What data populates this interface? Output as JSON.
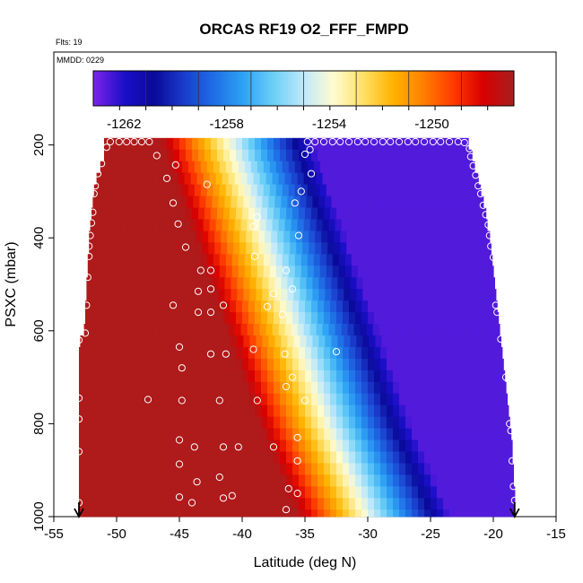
{
  "chart_data": {
    "type": "heatmap",
    "title": "ORCAS RF19 O2_FFF_FMPD",
    "flights_label": "Flts: 19",
    "date_label": "MMDD: 0229",
    "xlabel": "Latitude (deg N)",
    "ylabel": "PSXC (mbar)",
    "xlim": [
      -55,
      -15
    ],
    "ylim": [
      1000,
      0
    ],
    "x_ticks": [
      -55,
      -50,
      -45,
      -40,
      -35,
      -30,
      -25,
      -20,
      -15
    ],
    "y_ticks": [
      200,
      400,
      600,
      800,
      1000
    ],
    "colorbar": {
      "range": [
        -1263.2,
        -1246.8
      ],
      "tick_values": [
        -1262,
        -1258,
        -1254,
        -1250
      ],
      "tick_labels": [
        "-1262",
        "-1258",
        "-1254",
        "-1250"
      ],
      "colors": [
        "#7b22e8",
        "#1a0fc9",
        "#0a0a9a",
        "#1a3ccc",
        "#1f6ee6",
        "#2ea3f5",
        "#6ccff7",
        "#bfe9fb",
        "#fffbd0",
        "#ffe066",
        "#ffb300",
        "#ff8000",
        "#ff3b00",
        "#d90000",
        "#a81e1e"
      ],
      "bands": 16
    },
    "layers": [
      {
        "p_top": 185,
        "p_bot": 210,
        "lat_start": -51.0,
        "lat_end": -22.0
      },
      {
        "p_top": 210,
        "p_bot": 235,
        "lat_start": -51.0,
        "lat_end": -21.7
      },
      {
        "p_top": 235,
        "p_bot": 260,
        "lat_start": -51.3,
        "lat_end": -21.5
      },
      {
        "p_top": 260,
        "p_bot": 285,
        "lat_start": -51.6,
        "lat_end": -21.2
      },
      {
        "p_top": 285,
        "p_bot": 310,
        "lat_start": -51.8,
        "lat_end": -21.0
      },
      {
        "p_top": 310,
        "p_bot": 335,
        "lat_start": -51.9,
        "lat_end": -20.8
      },
      {
        "p_top": 335,
        "p_bot": 360,
        "lat_start": -52.0,
        "lat_end": -20.6
      },
      {
        "p_top": 360,
        "p_bot": 385,
        "lat_start": -52.1,
        "lat_end": -20.5
      },
      {
        "p_top": 385,
        "p_bot": 410,
        "lat_start": -52.2,
        "lat_end": -20.3
      },
      {
        "p_top": 410,
        "p_bot": 435,
        "lat_start": -52.2,
        "lat_end": -20.2
      },
      {
        "p_top": 435,
        "p_bot": 460,
        "lat_start": -52.3,
        "lat_end": -20.1
      },
      {
        "p_top": 460,
        "p_bot": 485,
        "lat_start": -52.3,
        "lat_end": -20.0
      },
      {
        "p_top": 485,
        "p_bot": 510,
        "lat_start": -52.4,
        "lat_end": -19.9
      },
      {
        "p_top": 510,
        "p_bot": 535,
        "lat_start": -52.4,
        "lat_end": -19.8
      },
      {
        "p_top": 535,
        "p_bot": 560,
        "lat_start": -52.5,
        "lat_end": -19.7
      },
      {
        "p_top": 560,
        "p_bot": 585,
        "lat_start": -52.5,
        "lat_end": -19.6
      },
      {
        "p_top": 585,
        "p_bot": 610,
        "lat_start": -52.6,
        "lat_end": -19.5
      },
      {
        "p_top": 610,
        "p_bot": 635,
        "lat_start": -52.9,
        "lat_end": -19.4
      },
      {
        "p_top": 635,
        "p_bot": 660,
        "lat_start": -53.0,
        "lat_end": -19.3
      },
      {
        "p_top": 660,
        "p_bot": 685,
        "lat_start": -53.0,
        "lat_end": -19.2
      },
      {
        "p_top": 685,
        "p_bot": 710,
        "lat_start": -53.0,
        "lat_end": -19.1
      },
      {
        "p_top": 710,
        "p_bot": 735,
        "lat_start": -53.0,
        "lat_end": -19.0
      },
      {
        "p_top": 735,
        "p_bot": 760,
        "lat_start": -53.0,
        "lat_end": -18.9
      },
      {
        "p_top": 760,
        "p_bot": 785,
        "lat_start": -53.0,
        "lat_end": -18.8
      },
      {
        "p_top": 785,
        "p_bot": 810,
        "lat_start": -53.0,
        "lat_end": -18.7
      },
      {
        "p_top": 810,
        "p_bot": 835,
        "lat_start": -53.0,
        "lat_end": -18.6
      },
      {
        "p_top": 835,
        "p_bot": 860,
        "lat_start": -53.0,
        "lat_end": -18.5
      },
      {
        "p_top": 860,
        "p_bot": 885,
        "lat_start": -53.0,
        "lat_end": -18.5
      },
      {
        "p_top": 885,
        "p_bot": 910,
        "lat_start": -53.0,
        "lat_end": -18.4
      },
      {
        "p_top": 910,
        "p_bot": 935,
        "lat_start": -53.0,
        "lat_end": -18.4
      },
      {
        "p_top": 935,
        "p_bot": 960,
        "lat_start": -53.0,
        "lat_end": -18.3
      },
      {
        "p_top": 960,
        "p_bot": 985,
        "lat_start": -53.0,
        "lat_end": -18.3
      },
      {
        "p_top": 985,
        "p_bot": 1000,
        "lat_start": -53.0,
        "lat_end": -18.3
      }
    ],
    "observations": [
      {
        "lat": -50.5,
        "p": 193
      },
      {
        "lat": -49.8,
        "p": 193
      },
      {
        "lat": -49.2,
        "p": 193
      },
      {
        "lat": -48.6,
        "p": 193
      },
      {
        "lat": -48.0,
        "p": 193
      },
      {
        "lat": -47.4,
        "p": 193
      },
      {
        "lat": -50.8,
        "p": 205
      },
      {
        "lat": -34.8,
        "p": 193
      },
      {
        "lat": -34.2,
        "p": 193
      },
      {
        "lat": -33.5,
        "p": 193
      },
      {
        "lat": -32.8,
        "p": 193
      },
      {
        "lat": -32.2,
        "p": 193
      },
      {
        "lat": -31.5,
        "p": 193
      },
      {
        "lat": -30.8,
        "p": 193
      },
      {
        "lat": -30.2,
        "p": 193
      },
      {
        "lat": -29.5,
        "p": 193
      },
      {
        "lat": -28.8,
        "p": 193
      },
      {
        "lat": -28.2,
        "p": 193
      },
      {
        "lat": -27.5,
        "p": 193
      },
      {
        "lat": -26.8,
        "p": 193
      },
      {
        "lat": -26.2,
        "p": 193
      },
      {
        "lat": -25.5,
        "p": 193
      },
      {
        "lat": -24.8,
        "p": 193
      },
      {
        "lat": -24.2,
        "p": 193
      },
      {
        "lat": -23.5,
        "p": 193
      },
      {
        "lat": -22.8,
        "p": 193
      },
      {
        "lat": -22.3,
        "p": 195
      },
      {
        "lat": -21.9,
        "p": 208
      },
      {
        "lat": -46.8,
        "p": 223
      },
      {
        "lat": -35.0,
        "p": 220
      },
      {
        "lat": -34.6,
        "p": 210
      },
      {
        "lat": -21.8,
        "p": 225
      },
      {
        "lat": -51.2,
        "p": 240
      },
      {
        "lat": -45.3,
        "p": 243
      },
      {
        "lat": -21.6,
        "p": 245
      },
      {
        "lat": -51.5,
        "p": 262
      },
      {
        "lat": -46.0,
        "p": 272
      },
      {
        "lat": -34.5,
        "p": 262
      },
      {
        "lat": -21.4,
        "p": 265
      },
      {
        "lat": -51.7,
        "p": 288
      },
      {
        "lat": -42.8,
        "p": 285
      },
      {
        "lat": -21.2,
        "p": 288
      },
      {
        "lat": -51.8,
        "p": 305
      },
      {
        "lat": -35.3,
        "p": 300
      },
      {
        "lat": -21.0,
        "p": 305
      },
      {
        "lat": -45.5,
        "p": 325
      },
      {
        "lat": -35.8,
        "p": 325
      },
      {
        "lat": -20.8,
        "p": 330
      },
      {
        "lat": -51.9,
        "p": 345
      },
      {
        "lat": -38.8,
        "p": 355
      },
      {
        "lat": -20.6,
        "p": 350
      },
      {
        "lat": -52.0,
        "p": 368
      },
      {
        "lat": -45.1,
        "p": 370
      },
      {
        "lat": -39.1,
        "p": 375
      },
      {
        "lat": -20.4,
        "p": 372
      },
      {
        "lat": -52.1,
        "p": 395
      },
      {
        "lat": -35.5,
        "p": 395
      },
      {
        "lat": -20.3,
        "p": 395
      },
      {
        "lat": -52.2,
        "p": 418
      },
      {
        "lat": -44.5,
        "p": 420
      },
      {
        "lat": -20.2,
        "p": 418
      },
      {
        "lat": -52.2,
        "p": 440
      },
      {
        "lat": -39.0,
        "p": 440
      },
      {
        "lat": -20.0,
        "p": 442
      },
      {
        "lat": -43.3,
        "p": 470
      },
      {
        "lat": -42.5,
        "p": 470
      },
      {
        "lat": -36.5,
        "p": 470
      },
      {
        "lat": -52.3,
        "p": 485
      },
      {
        "lat": -42.5,
        "p": 510
      },
      {
        "lat": -43.5,
        "p": 515
      },
      {
        "lat": -37.5,
        "p": 520
      },
      {
        "lat": -36.0,
        "p": 510
      },
      {
        "lat": -52.4,
        "p": 545
      },
      {
        "lat": -45.5,
        "p": 545
      },
      {
        "lat": -41.5,
        "p": 545
      },
      {
        "lat": -38.0,
        "p": 548
      },
      {
        "lat": -19.8,
        "p": 545
      },
      {
        "lat": -43.5,
        "p": 560
      },
      {
        "lat": -42.5,
        "p": 560
      },
      {
        "lat": -36.8,
        "p": 565
      },
      {
        "lat": -19.7,
        "p": 560
      },
      {
        "lat": -52.5,
        "p": 605
      },
      {
        "lat": -45.0,
        "p": 635
      },
      {
        "lat": -42.5,
        "p": 650
      },
      {
        "lat": -41.3,
        "p": 650
      },
      {
        "lat": -39.1,
        "p": 640
      },
      {
        "lat": -36.6,
        "p": 650
      },
      {
        "lat": -32.5,
        "p": 645
      },
      {
        "lat": -19.4,
        "p": 618
      },
      {
        "lat": -53.0,
        "p": 620
      },
      {
        "lat": -44.8,
        "p": 680
      },
      {
        "lat": -36.0,
        "p": 700
      },
      {
        "lat": -19.0,
        "p": 700
      },
      {
        "lat": -53.0,
        "p": 745
      },
      {
        "lat": -47.5,
        "p": 748
      },
      {
        "lat": -44.8,
        "p": 750
      },
      {
        "lat": -41.8,
        "p": 750
      },
      {
        "lat": -38.8,
        "p": 750
      },
      {
        "lat": -36.5,
        "p": 720
      },
      {
        "lat": -35.0,
        "p": 750
      },
      {
        "lat": -18.7,
        "p": 800
      },
      {
        "lat": -53.0,
        "p": 790
      },
      {
        "lat": -45.0,
        "p": 835
      },
      {
        "lat": -43.8,
        "p": 850
      },
      {
        "lat": -41.5,
        "p": 850
      },
      {
        "lat": -40.3,
        "p": 850
      },
      {
        "lat": -37.5,
        "p": 850
      },
      {
        "lat": -35.6,
        "p": 830
      },
      {
        "lat": -18.6,
        "p": 815
      },
      {
        "lat": -53.0,
        "p": 860
      },
      {
        "lat": -45.0,
        "p": 887
      },
      {
        "lat": -35.6,
        "p": 880
      },
      {
        "lat": -18.5,
        "p": 880
      },
      {
        "lat": -43.6,
        "p": 925
      },
      {
        "lat": -41.8,
        "p": 915
      },
      {
        "lat": -36.3,
        "p": 940
      },
      {
        "lat": -35.6,
        "p": 950
      },
      {
        "lat": -18.4,
        "p": 935
      },
      {
        "lat": -45.0,
        "p": 958
      },
      {
        "lat": -44.0,
        "p": 970
      },
      {
        "lat": -41.5,
        "p": 960
      },
      {
        "lat": -40.8,
        "p": 955
      },
      {
        "lat": -36.5,
        "p": 985
      },
      {
        "lat": -53.0,
        "p": 970
      },
      {
        "lat": -18.3,
        "p": 965
      }
    ],
    "arrows_lat": [
      -53.0,
      -18.3
    ]
  }
}
